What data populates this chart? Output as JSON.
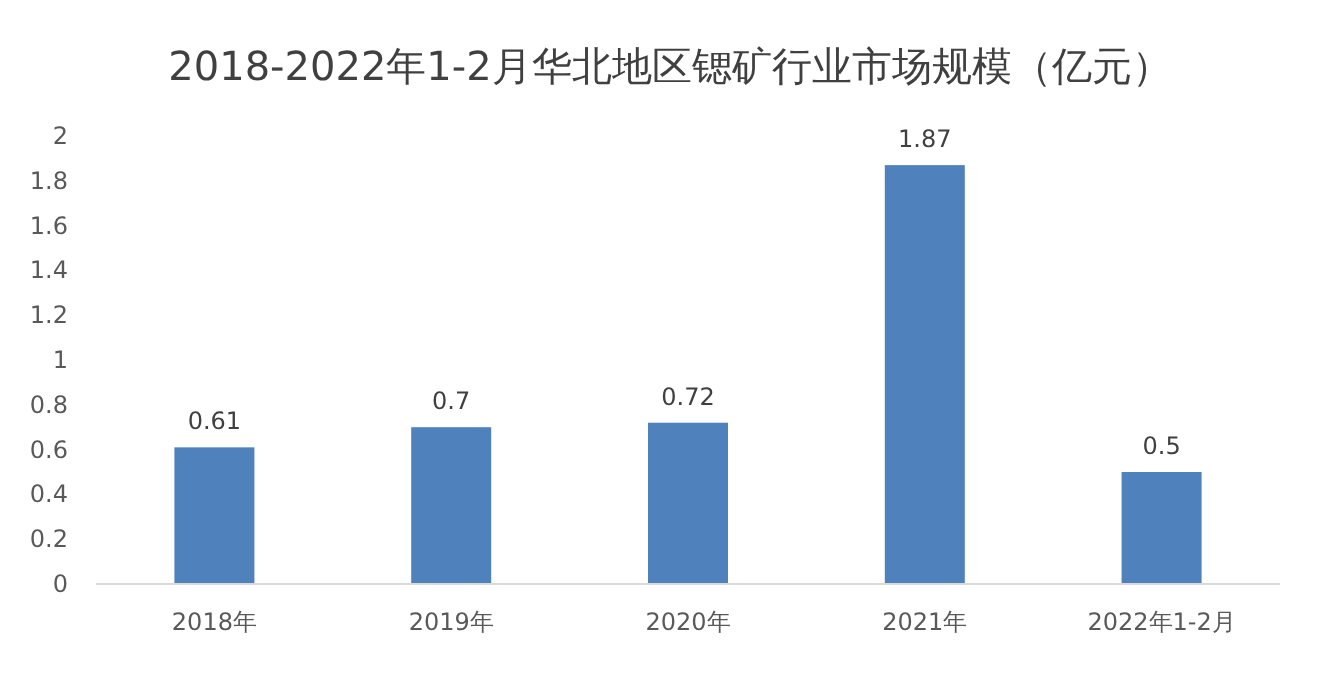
{
  "chart_data": {
    "type": "bar",
    "title": "2018-2022年1-2月华北地区锶矿行业市场规模（亿元）",
    "categories": [
      "2018年",
      "2019年",
      "2020年",
      "2021年",
      "2022年1-2月"
    ],
    "values": [
      0.61,
      0.7,
      0.72,
      1.87,
      0.5
    ],
    "color": "#4f81bd",
    "ylim": [
      0,
      2
    ],
    "yticks": [
      0,
      0.2,
      0.4,
      0.6,
      0.8,
      1,
      1.2,
      1.4,
      1.6,
      1.8,
      2
    ],
    "data_labels": true,
    "grid": false
  }
}
